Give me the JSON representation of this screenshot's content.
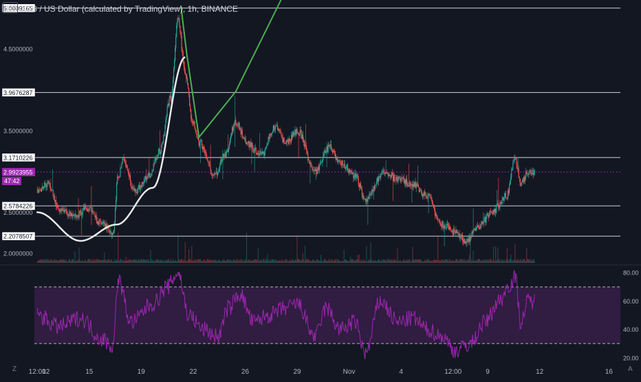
{
  "header": {
    "title": "XVS / US Dollar (calculated by TradingView), 1h, BINANCE",
    "currency": "USD"
  },
  "countdown": "47:42",
  "corner_left": "Z",
  "corner_right": "A",
  "colors": {
    "background": "#131722",
    "up": "#26a69a",
    "down": "#ef5350",
    "rsi_line": "#9c27b0",
    "rsi_band": "#3c1f4e",
    "last_price": "#9c27b0",
    "arc": "#e8e8e8",
    "pattern": "#4caf50",
    "level": "#d1d4dc"
  },
  "chart_data": [
    {
      "type": "candlestick",
      "title": "XVS / US Dollar (calculated by TradingView), 1h, BINANCE",
      "x_tick_labels": [
        "12:00",
        "12",
        "15",
        "19",
        "22",
        "26",
        "29",
        "Nov",
        "4",
        "12:00",
        "9",
        "12",
        "16"
      ],
      "x_tick_positions_hours": [
        0,
        12,
        72,
        144,
        216,
        288,
        360,
        432,
        504,
        576,
        624,
        696,
        792
      ],
      "y_axis_labels": [
        "2.0000000",
        "2.5000000",
        "3.5000000",
        "4.5000000"
      ],
      "y_axis_values": [
        2.0,
        2.5,
        3.5,
        4.5
      ],
      "ylim": [
        1.88,
        5.1
      ],
      "horizontal_levels": [
        {
          "label": "5.0009165",
          "value": 5.0009165
        },
        {
          "label": "3.9676287",
          "value": 3.9676287
        },
        {
          "label": "3.1710226",
          "value": 3.1710226
        },
        {
          "label": "2.5784226",
          "value": 2.5784226
        },
        {
          "label": "2.2078507",
          "value": 2.2078507
        }
      ],
      "last_price": {
        "label": "2.9923955",
        "value": 2.9923955
      },
      "price_path_keypoints": [
        {
          "t": 0,
          "v": 2.78
        },
        {
          "t": 15,
          "v": 2.85
        },
        {
          "t": 30,
          "v": 2.55
        },
        {
          "t": 50,
          "v": 2.45
        },
        {
          "t": 70,
          "v": 2.55
        },
        {
          "t": 90,
          "v": 2.35
        },
        {
          "t": 105,
          "v": 2.25
        },
        {
          "t": 112,
          "v": 2.95
        },
        {
          "t": 120,
          "v": 3.15
        },
        {
          "t": 135,
          "v": 2.75
        },
        {
          "t": 155,
          "v": 2.95
        },
        {
          "t": 170,
          "v": 3.25
        },
        {
          "t": 185,
          "v": 3.9
        },
        {
          "t": 195,
          "v": 4.85
        },
        {
          "t": 205,
          "v": 4.2
        },
        {
          "t": 215,
          "v": 3.6
        },
        {
          "t": 225,
          "v": 3.35
        },
        {
          "t": 245,
          "v": 2.95
        },
        {
          "t": 260,
          "v": 3.2
        },
        {
          "t": 275,
          "v": 3.6
        },
        {
          "t": 290,
          "v": 3.35
        },
        {
          "t": 310,
          "v": 3.2
        },
        {
          "t": 330,
          "v": 3.55
        },
        {
          "t": 345,
          "v": 3.35
        },
        {
          "t": 360,
          "v": 3.5
        },
        {
          "t": 385,
          "v": 3.0
        },
        {
          "t": 405,
          "v": 3.3
        },
        {
          "t": 420,
          "v": 3.1
        },
        {
          "t": 440,
          "v": 2.95
        },
        {
          "t": 455,
          "v": 2.65
        },
        {
          "t": 480,
          "v": 3.0
        },
        {
          "t": 500,
          "v": 2.9
        },
        {
          "t": 520,
          "v": 2.85
        },
        {
          "t": 540,
          "v": 2.7
        },
        {
          "t": 560,
          "v": 2.35
        },
        {
          "t": 580,
          "v": 2.25
        },
        {
          "t": 595,
          "v": 2.15
        },
        {
          "t": 610,
          "v": 2.3
        },
        {
          "t": 630,
          "v": 2.5
        },
        {
          "t": 650,
          "v": 2.7
        },
        {
          "t": 662,
          "v": 3.15
        },
        {
          "t": 670,
          "v": 2.85
        },
        {
          "t": 680,
          "v": 2.99
        }
      ],
      "drawings": {
        "arc": [
          {
            "t": 0,
            "v": 2.5
          },
          {
            "t": 60,
            "v": 2.15
          },
          {
            "t": 110,
            "v": 2.35
          },
          {
            "t": 160,
            "v": 2.8
          },
          {
            "t": 205,
            "v": 4.4
          }
        ],
        "pattern": [
          {
            "t": 199,
            "v": 5.03
          },
          {
            "t": 207,
            "v": 4.45
          },
          {
            "t": 224,
            "v": 3.42
          },
          {
            "t": 275,
            "v": 3.98
          },
          {
            "t": 360,
            "v": 5.5
          }
        ]
      }
    },
    {
      "type": "line",
      "title": "",
      "y_axis_labels": [
        "80.00",
        "60.00",
        "40.00",
        "20.00"
      ],
      "y_axis_values": [
        80,
        60,
        40,
        20
      ],
      "ylim": [
        16,
        84
      ],
      "band": [
        30,
        70
      ],
      "rsi_keypoints": [
        {
          "t": 0,
          "v": 50
        },
        {
          "t": 30,
          "v": 42
        },
        {
          "t": 60,
          "v": 48
        },
        {
          "t": 90,
          "v": 33
        },
        {
          "t": 105,
          "v": 28
        },
        {
          "t": 112,
          "v": 75
        },
        {
          "t": 130,
          "v": 45
        },
        {
          "t": 160,
          "v": 58
        },
        {
          "t": 180,
          "v": 70
        },
        {
          "t": 195,
          "v": 80
        },
        {
          "t": 210,
          "v": 50
        },
        {
          "t": 230,
          "v": 40
        },
        {
          "t": 250,
          "v": 35
        },
        {
          "t": 265,
          "v": 55
        },
        {
          "t": 280,
          "v": 65
        },
        {
          "t": 300,
          "v": 45
        },
        {
          "t": 320,
          "v": 50
        },
        {
          "t": 345,
          "v": 55
        },
        {
          "t": 360,
          "v": 58
        },
        {
          "t": 385,
          "v": 35
        },
        {
          "t": 400,
          "v": 55
        },
        {
          "t": 420,
          "v": 40
        },
        {
          "t": 440,
          "v": 45
        },
        {
          "t": 455,
          "v": 23
        },
        {
          "t": 475,
          "v": 60
        },
        {
          "t": 500,
          "v": 45
        },
        {
          "t": 520,
          "v": 48
        },
        {
          "t": 540,
          "v": 40
        },
        {
          "t": 560,
          "v": 35
        },
        {
          "t": 580,
          "v": 25
        },
        {
          "t": 600,
          "v": 30
        },
        {
          "t": 620,
          "v": 45
        },
        {
          "t": 640,
          "v": 60
        },
        {
          "t": 655,
          "v": 72
        },
        {
          "t": 662,
          "v": 77
        },
        {
          "t": 670,
          "v": 45
        },
        {
          "t": 680,
          "v": 60
        }
      ]
    }
  ]
}
